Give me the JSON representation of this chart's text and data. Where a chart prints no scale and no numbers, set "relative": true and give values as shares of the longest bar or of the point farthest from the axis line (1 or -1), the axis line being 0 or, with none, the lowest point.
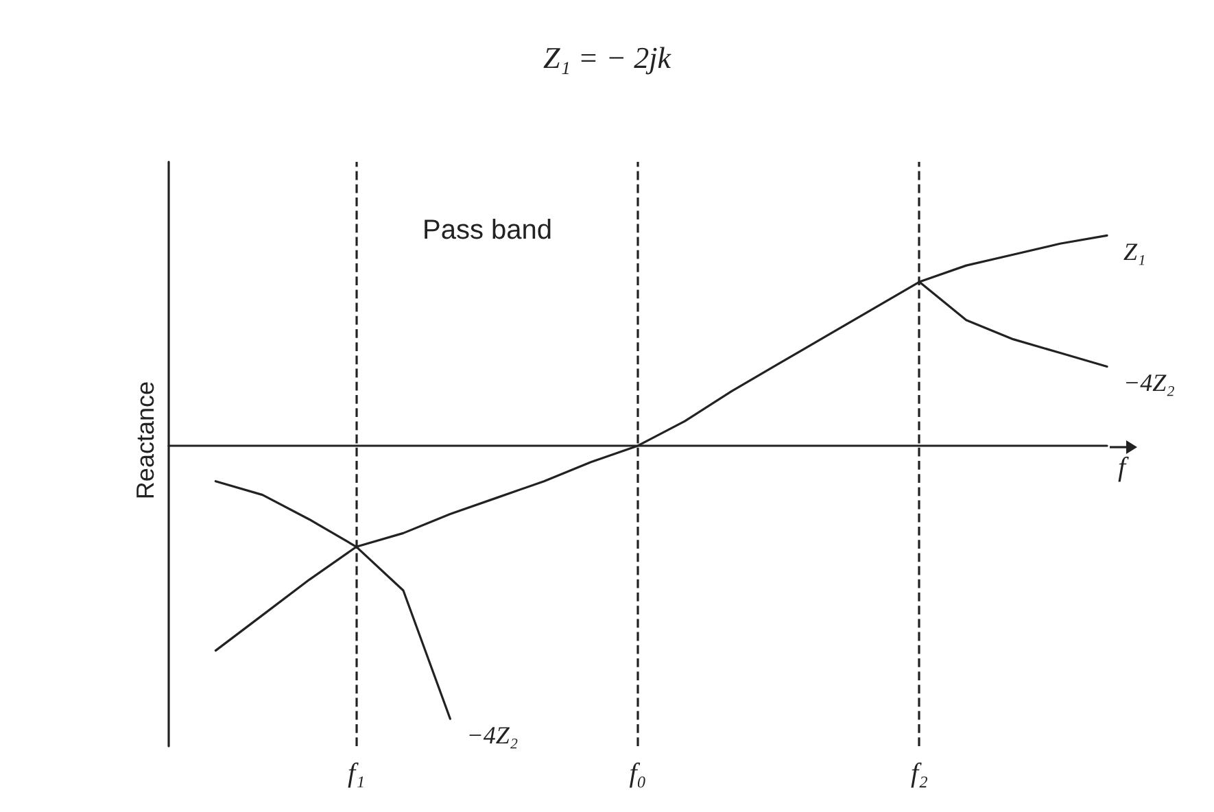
{
  "chart_data": {
    "type": "line",
    "relative": true,
    "title": "Z₁ = − 2jk",
    "xlabel": "f",
    "ylabel": "Reactance",
    "annotations": [
      "Pass band"
    ],
    "legend": false,
    "grid": false,
    "marker": "none",
    "line_style": "solid",
    "categories": [
      null,
      null,
      null,
      null,
      "f₁",
      null,
      null,
      null,
      null,
      null,
      "f₀",
      null,
      null,
      null,
      null,
      null,
      "f₂",
      null,
      null,
      null,
      null
    ],
    "series": [
      {
        "name": "Z₁",
        "color": "#222222",
        "values": [
          null,
          -0.75,
          -0.62,
          -0.49,
          -0.37,
          -0.32,
          -0.25,
          -0.19,
          -0.13,
          -0.06,
          0,
          0.09,
          0.2,
          0.3,
          0.4,
          0.5,
          0.6,
          0.66,
          0.7,
          0.74,
          0.77
        ]
      },
      {
        "name": "−4Z₂",
        "color": "#222222",
        "values": [
          null,
          -0.13,
          -0.18,
          -0.27,
          -0.37,
          -0.53,
          -1,
          null,
          null,
          null,
          null,
          null,
          null,
          null,
          null,
          null,
          null,
          null,
          null,
          null,
          null
        ]
      },
      {
        "name": "−4Z₂",
        "color": "#222222",
        "values": [
          null,
          null,
          null,
          null,
          null,
          null,
          null,
          null,
          null,
          null,
          null,
          null,
          null,
          null,
          null,
          null,
          0.6,
          0.46,
          0.39,
          0.34,
          0.29
        ]
      }
    ],
    "ref_lines": [
      {
        "axis": "x",
        "value": "f₁",
        "line_style": "dashed",
        "color": "#222222"
      },
      {
        "axis": "x",
        "value": "f₀",
        "line_style": "dashed",
        "color": "#222222"
      },
      {
        "axis": "x",
        "value": "f₂",
        "line_style": "dashed",
        "color": "#222222"
      }
    ]
  }
}
